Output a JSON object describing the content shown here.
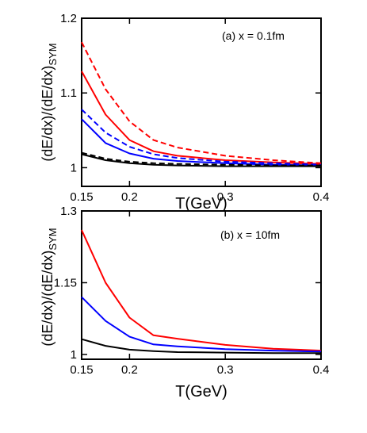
{
  "chart_data": [
    {
      "type": "line",
      "annotation": "(a) x = 0.1fm",
      "xlabel": "T(GeV)",
      "ylabel": "(dE/dx)/(dE/dx)",
      "ylabel_sub": "SYM",
      "xlim": [
        0.15,
        0.4
      ],
      "ylim": [
        0.975,
        1.2
      ],
      "xticks": [
        0.15,
        0.2,
        0.3,
        0.4
      ],
      "xtick_labels": [
        "0.15",
        "0.2",
        "0.3",
        "0.4"
      ],
      "yticks": [
        1,
        1.1,
        1.2
      ],
      "ytick_labels": [
        "1",
        "1.1",
        "1.2"
      ],
      "x": [
        0.15,
        0.175,
        0.2,
        0.225,
        0.25,
        0.3,
        0.35,
        0.4
      ],
      "series": [
        {
          "color": "#ff0000",
          "dash": true,
          "values": [
            1.168,
            1.105,
            1.062,
            1.037,
            1.027,
            1.016,
            1.01,
            1.006
          ]
        },
        {
          "color": "#ff0000",
          "dash": false,
          "values": [
            1.129,
            1.071,
            1.037,
            1.022,
            1.016,
            1.01,
            1.007,
            1.005
          ]
        },
        {
          "color": "#0000ff",
          "dash": true,
          "values": [
            1.078,
            1.047,
            1.028,
            1.018,
            1.013,
            1.008,
            1.006,
            1.004
          ]
        },
        {
          "color": "#0000ff",
          "dash": false,
          "values": [
            1.065,
            1.033,
            1.019,
            1.012,
            1.009,
            1.006,
            1.004,
            1.003
          ]
        },
        {
          "color": "#000000",
          "dash": true,
          "values": [
            1.02,
            1.012,
            1.008,
            1.006,
            1.005,
            1.004,
            1.003,
            1.003
          ]
        },
        {
          "color": "#000000",
          "dash": false,
          "values": [
            1.018,
            1.01,
            1.006,
            1.004,
            1.003,
            1.002,
            1.002,
            1.002
          ]
        }
      ]
    },
    {
      "type": "line",
      "annotation": "(b) x = 10fm",
      "xlabel": "T(GeV)",
      "ylabel": "(dE/dx)/(dE/dx)",
      "ylabel_sub": "SYM",
      "xlim": [
        0.15,
        0.4
      ],
      "ylim": [
        0.99,
        1.3
      ],
      "xticks": [
        0.15,
        0.2,
        0.3,
        0.4
      ],
      "xtick_labels": [
        "0.15",
        "0.2",
        "0.3",
        "0.4"
      ],
      "yticks": [
        1,
        1.15,
        1.3
      ],
      "ytick_labels": [
        "1",
        "1.15",
        "1.3"
      ],
      "x": [
        0.15,
        0.175,
        0.2,
        0.225,
        0.25,
        0.3,
        0.35,
        0.4
      ],
      "series": [
        {
          "color": "#ff0000",
          "dash": false,
          "values": [
            1.26,
            1.15,
            1.077,
            1.04,
            1.033,
            1.02,
            1.012,
            1.008
          ]
        },
        {
          "color": "#0000ff",
          "dash": false,
          "values": [
            1.12,
            1.07,
            1.037,
            1.021,
            1.017,
            1.011,
            1.008,
            1.006
          ]
        },
        {
          "color": "#000000",
          "dash": false,
          "values": [
            1.032,
            1.018,
            1.01,
            1.007,
            1.005,
            1.004,
            1.003,
            1.003
          ]
        }
      ]
    }
  ]
}
